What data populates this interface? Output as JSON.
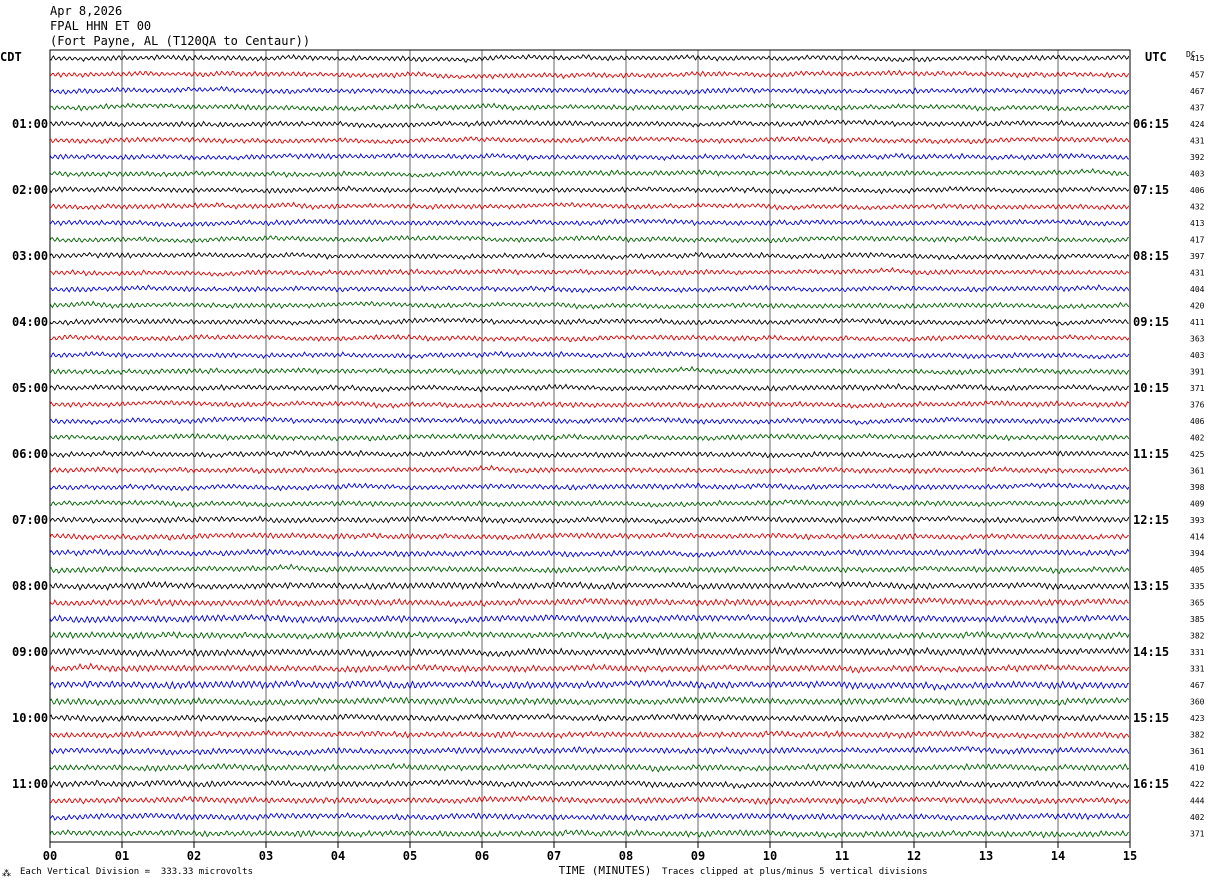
{
  "header": {
    "date": "Apr 8,2026",
    "station": "FPAL HHN ET 00",
    "location": "(Fort Payne, AL (T120QA to Centaur))"
  },
  "left_tz": "CDT",
  "right_tz": "UTC",
  "dc_label": "DC",
  "footer": {
    "vertical_division": "Each Vertical Division =  333.33 microvolts",
    "clip_note": "Traces clipped at plus/minus 5 vertical divisions",
    "corner_mark": "⁂"
  },
  "chart_data": {
    "type": "line",
    "title": "",
    "xlabel": "TIME (MINUTES)",
    "ylabel": "",
    "xlim": [
      0,
      15
    ],
    "x_ticks": [
      "00",
      "01",
      "02",
      "03",
      "04",
      "05",
      "06",
      "07",
      "08",
      "09",
      "10",
      "11",
      "12",
      "13",
      "14",
      "15"
    ],
    "trace_colors": [
      "#000000",
      "#e00000",
      "#0000e0",
      "#006400"
    ],
    "trace_count": 48,
    "left_hour_labels": [
      "01:00",
      "02:00",
      "03:00",
      "04:00",
      "05:00",
      "06:00",
      "07:00",
      "08:00",
      "09:00",
      "10:00",
      "11:00"
    ],
    "right_hour_labels": [
      "06:15",
      "07:15",
      "08:15",
      "09:15",
      "10:15",
      "11:15",
      "12:15",
      "13:15",
      "14:15",
      "15:15",
      "16:15"
    ],
    "dc_offsets": [
      415,
      457,
      467,
      437,
      424,
      431,
      392,
      403,
      406,
      432,
      413,
      417,
      397,
      431,
      404,
      420,
      411,
      363,
      403,
      391,
      371,
      376,
      406,
      402,
      425,
      361,
      398,
      409,
      393,
      414,
      394,
      405,
      335,
      365,
      385,
      382,
      331,
      331,
      467,
      360,
      423,
      382,
      361,
      410,
      422,
      444,
      402,
      371
    ],
    "noise_amplitude": [
      2.5,
      2.5,
      2.5,
      2.5,
      2.5,
      2.5,
      2.5,
      2.5,
      2.5,
      2.5,
      2.5,
      2.5,
      2.5,
      2.5,
      2.5,
      2.5,
      2.5,
      2.5,
      2.5,
      2.5,
      2.6,
      2.6,
      2.6,
      2.6,
      2.6,
      2.6,
      2.6,
      2.6,
      2.8,
      2.8,
      2.8,
      2.8,
      3.2,
      3.2,
      3.4,
      3.2,
      3.4,
      3.2,
      3.6,
      3.2,
      3.0,
      3.0,
      3.0,
      3.0,
      3.0,
      3.0,
      3.0,
      3.0
    ]
  }
}
